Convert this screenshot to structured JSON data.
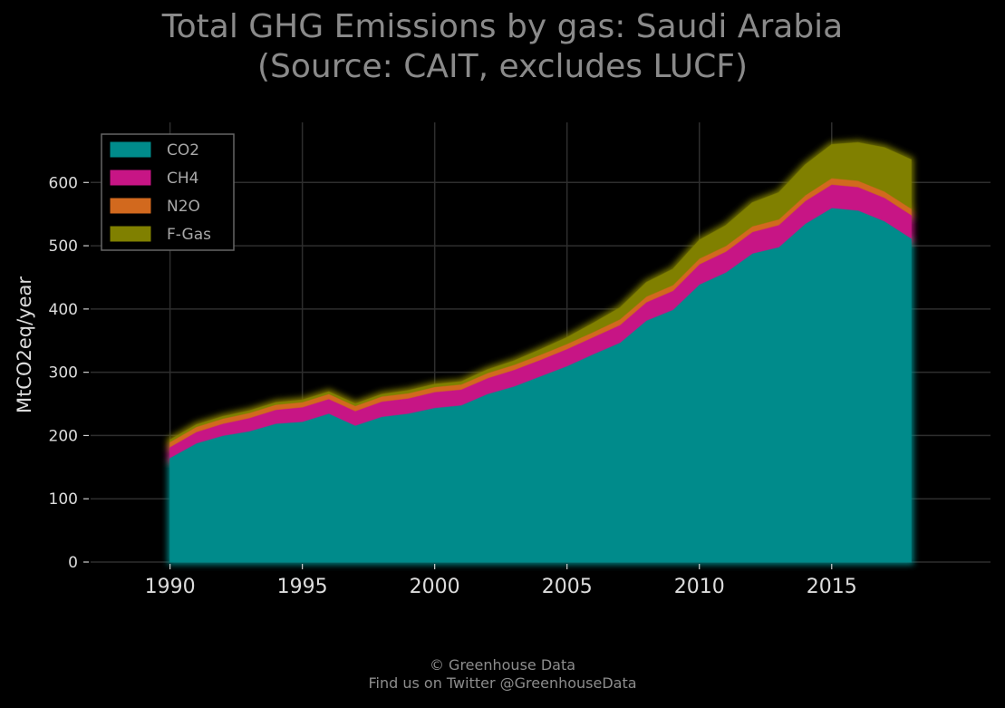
{
  "header": {
    "title_line1": "Total GHG Emissions by gas: Saudi Arabia",
    "title_line2": "(Source: CAIT, excludes LUCF)"
  },
  "footer": {
    "copyright": "© Greenhouse Data",
    "twitter": "Find us on Twitter @GreenhouseData"
  },
  "chart_data": {
    "type": "area",
    "stacked": true,
    "title": "Total GHG Emissions by gas: Saudi Arabia\n(Source: CAIT, excludes LUCF)",
    "xlabel": "",
    "ylabel": "MtCO2eq/year",
    "xlim": [
      1987,
      2021
    ],
    "ylim": [
      0,
      695
    ],
    "x_ticks": [
      1990,
      1995,
      2000,
      2005,
      2010,
      2015
    ],
    "y_ticks": [
      0,
      100,
      200,
      300,
      400,
      500,
      600
    ],
    "grid": true,
    "legend_position": "top-left",
    "x": [
      1990,
      1991,
      1992,
      1993,
      1994,
      1995,
      1996,
      1997,
      1998,
      1999,
      2000,
      2001,
      2002,
      2003,
      2004,
      2005,
      2006,
      2007,
      2008,
      2009,
      2010,
      2011,
      2012,
      2013,
      2014,
      2015,
      2016,
      2017,
      2018
    ],
    "series": [
      {
        "name": "CO2",
        "color": "#008b8b",
        "values": [
          165,
          188,
          200,
          207,
          219,
          222,
          235,
          216,
          230,
          235,
          244,
          248,
          266,
          278,
          294,
          310,
          329,
          347,
          382,
          399,
          439,
          458,
          488,
          498,
          535,
          560,
          556,
          539,
          512
        ]
      },
      {
        "name": "CH4",
        "color": "#c71585",
        "values": [
          17,
          18,
          19,
          21,
          22,
          23,
          23,
          23,
          24,
          24,
          25,
          25,
          25,
          26,
          26,
          27,
          27,
          28,
          29,
          30,
          32,
          33,
          34,
          35,
          36,
          37,
          37,
          37,
          37
        ]
      },
      {
        "name": "N2O",
        "color": "#d2691e",
        "values": [
          8,
          8,
          8,
          8,
          8,
          8,
          8,
          8,
          8,
          8,
          8,
          8,
          8,
          8,
          8,
          8,
          8,
          9,
          9,
          9,
          9,
          9,
          9,
          9,
          9,
          10,
          10,
          10,
          10
        ]
      },
      {
        "name": "F-Gas",
        "color": "#808000",
        "values": [
          3,
          3,
          3,
          3,
          3,
          3,
          3,
          3,
          3,
          4,
          4,
          4,
          5,
          6,
          8,
          10,
          14,
          18,
          22,
          25,
          29,
          32,
          37,
          42,
          48,
          53,
          60,
          69,
          77
        ]
      }
    ]
  }
}
